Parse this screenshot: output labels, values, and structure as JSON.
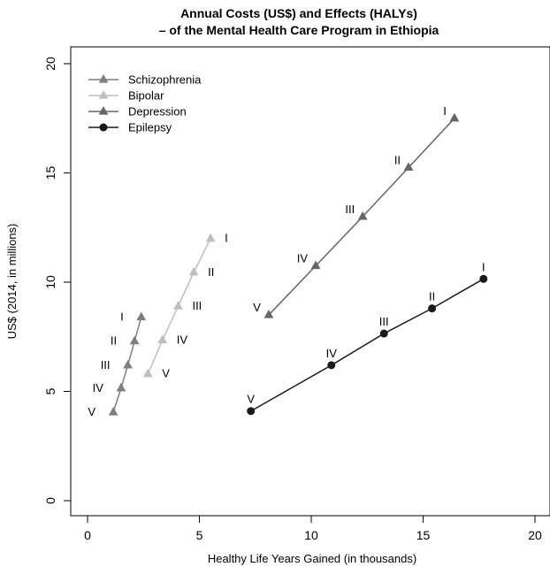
{
  "chart_data": {
    "type": "line",
    "title": "Annual Costs (US$) and Effects (HALYs)",
    "subtitle": "– of the Mental Health Care Program in Ethiopia",
    "xlabel": "Healthy Life Years Gained (in thousands)",
    "ylabel": "US$ (2014, in millions)",
    "xlim": [
      0,
      20
    ],
    "ylim": [
      0,
      20
    ],
    "xticks": [
      0,
      5,
      10,
      15,
      20
    ],
    "yticks": [
      0,
      5,
      10,
      15,
      20
    ],
    "grid": false,
    "legend_position": "top-left",
    "series": [
      {
        "name": "Schizophrenia",
        "marker": "triangle",
        "color": "#7f7f7f",
        "points": [
          {
            "x": 1.15,
            "y": 4.05,
            "label": "V"
          },
          {
            "x": 1.5,
            "y": 5.15,
            "label": "IV"
          },
          {
            "x": 1.8,
            "y": 6.2,
            "label": "III"
          },
          {
            "x": 2.1,
            "y": 7.3,
            "label": "II"
          },
          {
            "x": 2.4,
            "y": 8.4,
            "label": "I"
          }
        ]
      },
      {
        "name": "Bipolar",
        "marker": "triangle",
        "color": "#bfbfbf",
        "points": [
          {
            "x": 2.7,
            "y": 5.8,
            "label": "V"
          },
          {
            "x": 3.35,
            "y": 7.35,
            "label": "IV"
          },
          {
            "x": 4.05,
            "y": 8.9,
            "label": "III"
          },
          {
            "x": 4.75,
            "y": 10.45,
            "label": "II"
          },
          {
            "x": 5.5,
            "y": 12.0,
            "label": "I"
          }
        ]
      },
      {
        "name": "Depression",
        "marker": "triangle",
        "color": "#666666",
        "points": [
          {
            "x": 8.1,
            "y": 8.5,
            "label": "V"
          },
          {
            "x": 10.2,
            "y": 10.75,
            "label": "IV"
          },
          {
            "x": 12.3,
            "y": 13.0,
            "label": "III"
          },
          {
            "x": 14.35,
            "y": 15.25,
            "label": "II"
          },
          {
            "x": 16.4,
            "y": 17.5,
            "label": "I"
          }
        ]
      },
      {
        "name": "Epilepsy",
        "marker": "circle",
        "color": "#1a1a1a",
        "points": [
          {
            "x": 7.3,
            "y": 4.1,
            "label": "V"
          },
          {
            "x": 10.9,
            "y": 6.2,
            "label": "IV"
          },
          {
            "x": 13.25,
            "y": 7.65,
            "label": "III"
          },
          {
            "x": 15.4,
            "y": 8.8,
            "label": "II"
          },
          {
            "x": 17.7,
            "y": 10.15,
            "label": "I"
          }
        ]
      }
    ]
  }
}
